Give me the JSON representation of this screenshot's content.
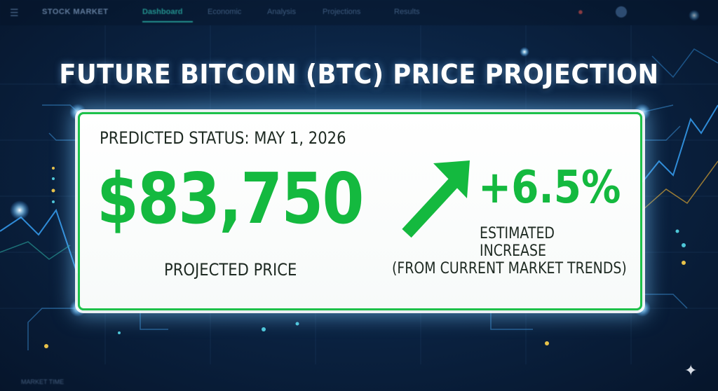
{
  "navbar": {
    "brand": "STOCK MARKET",
    "tabs": [
      {
        "label": "Dashboard",
        "active": true
      },
      {
        "label": "Economic",
        "active": false
      },
      {
        "label": "Analysis",
        "active": false
      },
      {
        "label": "Projections",
        "active": false
      },
      {
        "label": "Results",
        "active": false
      }
    ],
    "menu_icon": "hamburger-icon",
    "bell_icon": "bell-icon"
  },
  "headline": "FUTURE BITCOIN (BTC) PRICE PROJECTION",
  "card": {
    "status": "PREDICTED STATUS: MAY 1, 2026",
    "price": "$83,750",
    "price_label": "PROJECTED PRICE",
    "change": "+6.5%",
    "change_label": "ESTIMATED INCREASE",
    "change_note": "(FROM CURRENT MARKET TRENDS)",
    "arrow_icon": "trend-up-arrow-icon"
  },
  "bottom": {
    "left_label": "MARKET TIME"
  },
  "colors": {
    "accent_green": "#14b93f",
    "border_green": "#1ec14a",
    "background_navy": "#0b2444",
    "tab_active": "#2bb5a8"
  },
  "watermark_icon": "sparkle-icon"
}
